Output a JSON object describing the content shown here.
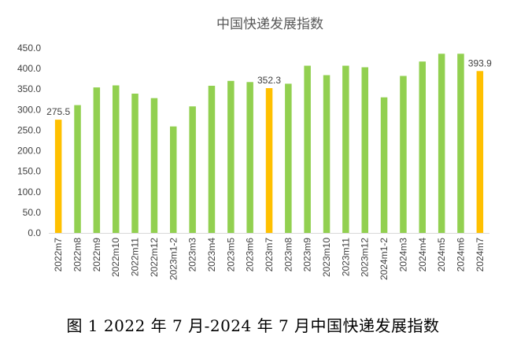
{
  "caption": "图 1 2022 年 7 月-2024 年 7 月中国快递发展指数",
  "colors": {
    "bar": "#92D050",
    "highlight": "#FFC000",
    "axis": "#D9D9D9",
    "text": "#404040"
  },
  "chart_data": {
    "type": "bar",
    "title": "中国快递发展指数",
    "xlabel": "",
    "ylabel": "",
    "ylim": [
      0,
      450
    ],
    "yticks": [
      "0.0",
      "50.0",
      "100.0",
      "150.0",
      "200.0",
      "250.0",
      "300.0",
      "350.0",
      "400.0",
      "450.0"
    ],
    "grid": false,
    "categories": [
      "2022m7",
      "2022m8",
      "2022m9",
      "2022m10",
      "2022m11",
      "2022m12",
      "2023m1-2",
      "2023m3",
      "2023m4",
      "2023m5",
      "2023m6",
      "2023m7",
      "2023m8",
      "2023m9",
      "2023m10",
      "2023m11",
      "2023m12",
      "2024m1-2",
      "2024m3",
      "2024m4",
      "2024m5",
      "2024m6",
      "2024m7"
    ],
    "values": [
      275.5,
      311,
      354,
      359,
      339,
      328,
      259,
      308,
      358,
      370,
      367,
      352.3,
      363,
      407,
      384,
      407,
      403,
      330,
      382,
      417,
      436,
      436,
      393.9
    ],
    "highlighted": [
      true,
      false,
      false,
      false,
      false,
      false,
      false,
      false,
      false,
      false,
      false,
      true,
      false,
      false,
      false,
      false,
      false,
      false,
      false,
      false,
      false,
      false,
      true
    ],
    "data_labels": [
      "275.5",
      "",
      "",
      "",
      "",
      "",
      "",
      "",
      "",
      "",
      "",
      "352.3",
      "",
      "",
      "",
      "",
      "",
      "",
      "",
      "",
      "",
      "",
      "393.9"
    ]
  }
}
